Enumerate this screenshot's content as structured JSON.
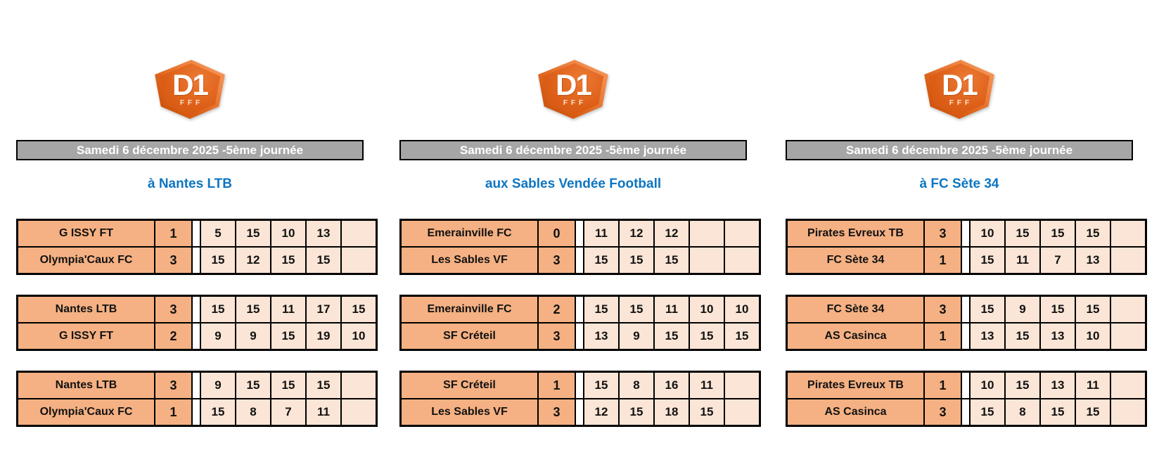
{
  "header_label": "Samedi 6 décembre 2025 -5ème journée",
  "logo": {
    "title": "D1",
    "sub": "FFF"
  },
  "colors": {
    "bar_gray": "#a6a6a6",
    "venue_blue": "#0d76c1",
    "cell_orange": "#f5b183",
    "cell_peach": "#fbe5d6",
    "logo_orange": "#dd5f17",
    "border_black": "#000000"
  },
  "columns": [
    {
      "venue": "à Nantes LTB",
      "matches": [
        {
          "rows": [
            {
              "team": "G ISSY FT",
              "score": "1",
              "sets": [
                "5",
                "15",
                "10",
                "13",
                ""
              ]
            },
            {
              "team": "Olympia'Caux FC",
              "score": "3",
              "sets": [
                "15",
                "12",
                "15",
                "15",
                ""
              ]
            }
          ]
        },
        {
          "rows": [
            {
              "team": "Nantes LTB",
              "score": "3",
              "sets": [
                "15",
                "15",
                "11",
                "17",
                "15"
              ]
            },
            {
              "team": "G ISSY FT",
              "score": "2",
              "sets": [
                "9",
                "9",
                "15",
                "19",
                "10"
              ]
            }
          ]
        },
        {
          "rows": [
            {
              "team": "Nantes LTB",
              "score": "3",
              "sets": [
                "9",
                "15",
                "15",
                "15",
                ""
              ]
            },
            {
              "team": "Olympia'Caux FC",
              "score": "1",
              "sets": [
                "15",
                "8",
                "7",
                "11",
                ""
              ]
            }
          ]
        }
      ]
    },
    {
      "venue": "aux Sables Vendée Football",
      "matches": [
        {
          "rows": [
            {
              "team": "Emerainville FC",
              "score": "0",
              "sets": [
                "11",
                "12",
                "12",
                "",
                ""
              ]
            },
            {
              "team": "Les Sables VF",
              "score": "3",
              "sets": [
                "15",
                "15",
                "15",
                "",
                ""
              ]
            }
          ]
        },
        {
          "rows": [
            {
              "team": "Emerainville FC",
              "score": "2",
              "sets": [
                "15",
                "15",
                "11",
                "10",
                "10"
              ]
            },
            {
              "team": "SF Créteil",
              "score": "3",
              "sets": [
                "13",
                "9",
                "15",
                "15",
                "15"
              ]
            }
          ]
        },
        {
          "rows": [
            {
              "team": "SF Créteil",
              "score": "1",
              "sets": [
                "15",
                "8",
                "16",
                "11",
                ""
              ]
            },
            {
              "team": "Les Sables VF",
              "score": "3",
              "sets": [
                "12",
                "15",
                "18",
                "15",
                ""
              ]
            }
          ]
        }
      ]
    },
    {
      "venue": "à FC Sète 34",
      "matches": [
        {
          "rows": [
            {
              "team": "Pirates Evreux TB",
              "score": "3",
              "sets": [
                "10",
                "15",
                "15",
                "15",
                ""
              ]
            },
            {
              "team": "FC Sète 34",
              "score": "1",
              "sets": [
                "15",
                "11",
                "7",
                "13",
                ""
              ]
            }
          ]
        },
        {
          "rows": [
            {
              "team": "FC Sète 34",
              "score": "3",
              "sets": [
                "15",
                "9",
                "15",
                "15",
                ""
              ]
            },
            {
              "team": "AS Casinca",
              "score": "1",
              "sets": [
                "13",
                "15",
                "13",
                "10",
                ""
              ]
            }
          ]
        },
        {
          "rows": [
            {
              "team": "Pirates Evreux TB",
              "score": "1",
              "sets": [
                "10",
                "15",
                "13",
                "11",
                ""
              ]
            },
            {
              "team": "AS Casinca",
              "score": "3",
              "sets": [
                "15",
                "8",
                "15",
                "15",
                ""
              ]
            }
          ]
        }
      ]
    }
  ]
}
